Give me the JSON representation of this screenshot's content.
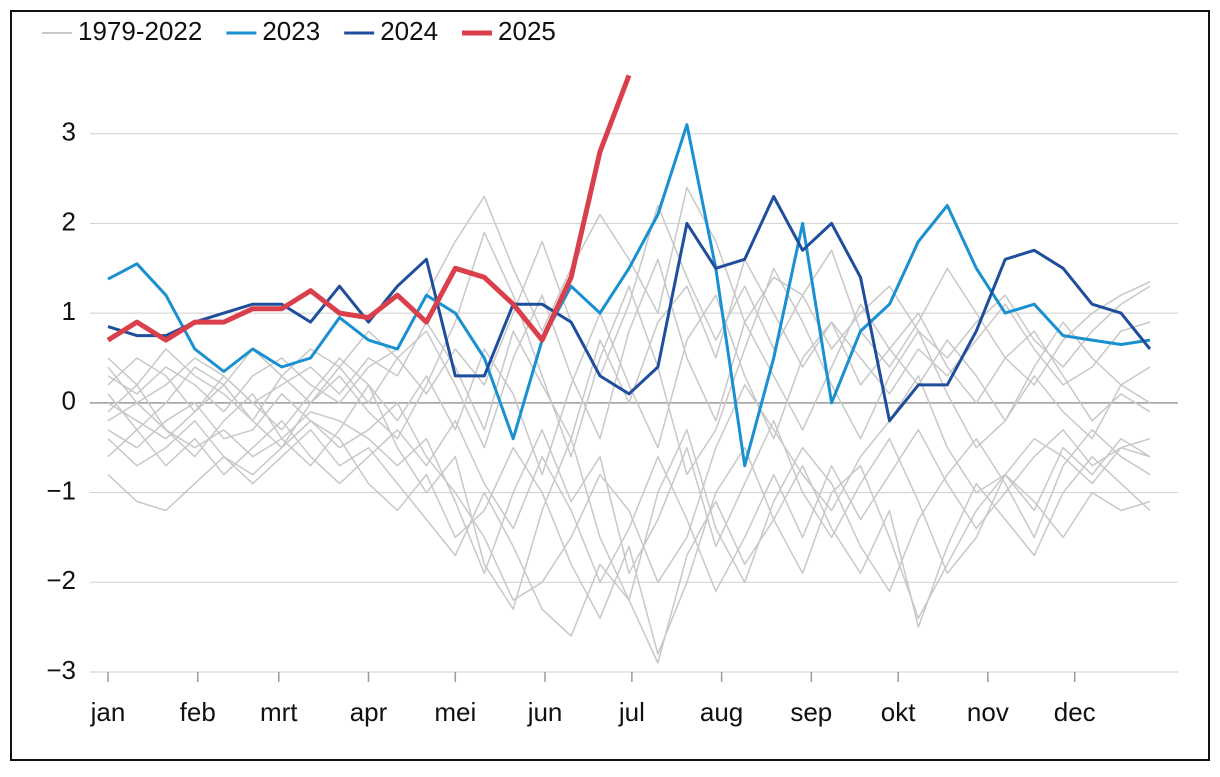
{
  "chart_data": {
    "type": "line",
    "x": [
      1,
      11,
      21,
      31,
      41,
      51,
      61,
      71,
      81,
      91,
      101,
      111,
      121,
      131,
      141,
      151,
      161,
      171,
      181,
      191,
      201,
      211,
      221,
      231,
      241,
      251,
      261,
      271,
      281,
      291,
      301,
      311,
      321,
      331,
      341,
      351,
      361
    ],
    "xlim": [
      1,
      370
    ],
    "xticks": [
      {
        "value": 1,
        "label": "jan"
      },
      {
        "value": 32,
        "label": "feb"
      },
      {
        "value": 60,
        "label": "mrt"
      },
      {
        "value": 91,
        "label": "apr"
      },
      {
        "value": 121,
        "label": "mei"
      },
      {
        "value": 152,
        "label": "jun"
      },
      {
        "value": 182,
        "label": "jul"
      },
      {
        "value": 213,
        "label": "aug"
      },
      {
        "value": 244,
        "label": "sep"
      },
      {
        "value": 274,
        "label": "okt"
      },
      {
        "value": 305,
        "label": "nov"
      },
      {
        "value": 335,
        "label": "dec"
      }
    ],
    "ylim": [
      -3,
      4
    ],
    "yticks": [
      {
        "value": -3,
        "label": "−3"
      },
      {
        "value": -2,
        "label": "−2"
      },
      {
        "value": -1,
        "label": "−1"
      },
      0,
      1,
      2,
      3
    ],
    "grid": true,
    "series": [
      {
        "name": "1979-2022",
        "color": "#c8c8c8",
        "lines": [
          [
            -0.3,
            -0.5,
            -0.2,
            0,
            -0.4,
            -0.3,
            0.1,
            -0.2,
            -0.5,
            -0.3,
            0,
            -0.6,
            -1.0,
            -1.5,
            -2.2,
            -2.0,
            -1.5,
            -0.8,
            -1.2,
            -2.0,
            -1.5,
            -0.5,
            0.2,
            -0.3,
            -0.8,
            -1.2,
            -0.6,
            -0.2,
            0.3,
            -0.5,
            -1.0,
            -0.8,
            -0.4,
            -0.6,
            -0.9,
            -0.5,
            -0.6
          ],
          [
            0.3,
            0.1,
            0.4,
            0.2,
            -0.1,
            0.3,
            0.5,
            0.2,
            0,
            0.4,
            0.6,
            1.2,
            1.8,
            2.3,
            1.5,
            0.8,
            1.5,
            2.1,
            1.6,
            1.0,
            2.4,
            1.8,
            0.9,
            1.4,
            1.2,
            0.6,
            1.0,
            1.3,
            0.8,
            0.5,
            0.9,
            1.2,
            0.7,
            0.4,
            0.8,
            1.1,
            1.3
          ],
          [
            -0.8,
            -1.1,
            -1.2,
            -0.9,
            -0.6,
            -0.8,
            -0.5,
            -0.2,
            -0.4,
            -0.9,
            -1.2,
            -0.8,
            -1.5,
            -1.2,
            -0.5,
            -1.0,
            -1.8,
            -2.4,
            -1.6,
            -2.8,
            -2.0,
            -1.0,
            -0.5,
            -1.3,
            -1.9,
            -1.0,
            -0.7,
            -1.5,
            -2.4,
            -1.8,
            -1.2,
            -0.8,
            -1.1,
            -1.5,
            -1.0,
            -1.2,
            -1.1
          ],
          [
            0.5,
            0.2,
            0.6,
            0.3,
            0.1,
            -0.2,
            0.3,
            0.6,
            0.4,
            0.0,
            0.5,
            0.8,
            0.2,
            -0.5,
            0.5,
            1.2,
            0.3,
            -0.4,
            0.8,
            1.6,
            0.5,
            -0.2,
            0.9,
            0.3,
            -0.3,
            0.4,
            1.1,
            0.6,
            0.2,
            0.7,
            0.3,
            -0.2,
            0.4,
            0.9,
            0.5,
            0.2,
            0.4
          ],
          [
            -0.1,
            0.2,
            -0.3,
            -0.6,
            -0.2,
            0.1,
            -0.4,
            -0.7,
            -0.3,
            0.2,
            -0.5,
            -1.0,
            -0.6,
            -1.8,
            -2.3,
            -1.2,
            -0.4,
            -1.5,
            -2.2,
            -1.0,
            -0.3,
            -1.4,
            -2.0,
            -1.1,
            -0.5,
            -0.9,
            -1.6,
            -2.1,
            -1.3,
            -0.8,
            -0.4,
            -0.9,
            -1.5,
            -0.7,
            -0.3,
            -0.6,
            -0.8
          ],
          [
            0.1,
            -0.3,
            0.0,
            0.4,
            0.2,
            -0.2,
            -0.5,
            0.0,
            0.3,
            -0.1,
            -0.4,
            0.2,
            0.9,
            1.9,
            1.2,
            0.3,
            -0.6,
            0.5,
            1.3,
            0.4,
            -0.8,
            -0.3,
            0.6,
            1.5,
            0.9,
            0.2,
            -0.4,
            0.3,
            0.8,
            0.1,
            -0.5,
            -0.2,
            0.3,
            -0.1,
            -0.4,
            0.2,
            0.0
          ],
          [
            -0.4,
            -0.7,
            -0.5,
            -0.2,
            -0.6,
            -0.9,
            -0.6,
            -0.3,
            -0.7,
            -0.5,
            -0.9,
            -1.3,
            -1.7,
            -1.0,
            -1.6,
            -2.3,
            -2.6,
            -1.8,
            -2.2,
            -2.9,
            -1.7,
            -1.1,
            -1.8,
            -1.3,
            -0.7,
            -1.4,
            -1.9,
            -1.2,
            -2.5,
            -1.6,
            -0.9,
            -1.3,
            -1.7,
            -1.0,
            -0.6,
            -0.9,
            -1.2
          ],
          [
            0.2,
            0.5,
            0.3,
            -0.1,
            0.2,
            0.6,
            0.3,
            0.0,
            0.4,
            0.8,
            0.5,
            0.1,
            0.6,
            0.2,
            1.0,
            1.8,
            0.9,
            0.3,
            1.1,
            2.2,
            1.4,
            0.7,
            1.3,
            0.6,
            1.2,
            1.7,
            0.8,
            0.4,
            0.9,
            1.5,
            1.0,
            0.5,
            0.2,
            0.7,
            1.0,
            1.2,
            1.35
          ],
          [
            -0.6,
            -0.3,
            -0.7,
            -0.4,
            -0.8,
            -0.5,
            -0.2,
            -0.6,
            -0.9,
            -0.6,
            -0.3,
            -0.7,
            -0.2,
            -0.9,
            -1.4,
            -0.6,
            -1.2,
            -2.0,
            -1.4,
            -0.6,
            -1.3,
            -2.1,
            -1.5,
            -0.8,
            -1.5,
            -0.7,
            -1.3,
            -0.8,
            -0.3,
            -0.9,
            -1.4,
            -1.0,
            -0.6,
            -0.3,
            -0.7,
            -0.5,
            -0.4
          ],
          [
            0.0,
            -0.2,
            -0.4,
            -0.1,
            0.3,
            0.0,
            -0.3,
            0.1,
            0.5,
            0.2,
            -0.2,
            0.3,
            -0.3,
            0.6,
            0.1,
            -0.8,
            0.2,
            1.0,
            0.2,
            -0.5,
            0.7,
            1.2,
            0.3,
            -0.4,
            0.5,
            0.9,
            0.2,
            0.6,
            1.0,
            0.4,
            0.0,
            0.5,
            0.8,
            0.3,
            -0.2,
            0.1,
            -0.1
          ],
          [
            -0.2,
            0.0,
            -0.3,
            -0.5,
            -0.3,
            -0.6,
            -0.4,
            -0.1,
            -0.2,
            -0.4,
            -0.7,
            -0.4,
            -1.1,
            -1.9,
            -1.0,
            -0.3,
            -1.1,
            -0.6,
            -1.9,
            -1.3,
            -0.5,
            -1.6,
            -0.9,
            -0.2,
            -1.0,
            -1.5,
            -0.9,
            -0.4,
            -1.1,
            -1.9,
            -1.5,
            -0.8,
            -1.2,
            -0.5,
            -0.8,
            -0.4,
            -0.6
          ],
          [
            0.4,
            0.0,
            0.2,
            0.5,
            0.3,
            0.0,
            0.2,
            0.4,
            0.1,
            0.5,
            0.3,
            0.9,
            0.4,
            -0.3,
            0.8,
            0.2,
            -0.4,
            0.7,
            0.0,
            0.9,
            1.3,
            0.5,
            1.6,
            1.0,
            0.4,
            0.9,
            0.5,
            0.1,
            0.6,
            0.3,
            0.7,
            1.1,
            0.6,
            0.2,
            0.4,
            0.8,
            0.9
          ]
        ]
      },
      {
        "name": "2023",
        "color": "#1a90d0",
        "values": [
          1.38,
          1.55,
          1.2,
          0.6,
          0.35,
          0.6,
          0.4,
          0.5,
          0.95,
          0.7,
          0.6,
          1.2,
          1.0,
          0.5,
          -0.4,
          0.7,
          1.3,
          1.0,
          1.5,
          2.1,
          3.1,
          1.5,
          -0.7,
          0.5,
          2.0,
          0.0,
          0.8,
          1.1,
          1.8,
          2.2,
          1.5,
          1.0,
          1.1,
          0.75,
          0.7,
          0.65,
          0.7
        ]
      },
      {
        "name": "2024",
        "color": "#1f4e9c",
        "values": [
          0.85,
          0.75,
          0.75,
          0.9,
          1.0,
          1.1,
          1.1,
          0.9,
          1.3,
          0.9,
          1.3,
          1.6,
          0.3,
          0.3,
          1.1,
          1.1,
          0.9,
          0.3,
          0.1,
          0.4,
          2.0,
          1.5,
          1.6,
          2.3,
          1.7,
          2.0,
          1.4,
          -0.2,
          0.2,
          0.2,
          0.8,
          1.6,
          1.7,
          1.5,
          1.1,
          1.0,
          0.6
        ]
      },
      {
        "name": "2025",
        "color": "#d9404b",
        "values": [
          0.7,
          0.9,
          0.7,
          0.9,
          0.9,
          1.05,
          1.05,
          1.25,
          1.0,
          0.95,
          1.2,
          0.9,
          1.5,
          1.4,
          1.1,
          0.7,
          1.4,
          2.8,
          3.65,
          null,
          null,
          null,
          null,
          null,
          null,
          null,
          null,
          null,
          null,
          null,
          null,
          null,
          null,
          null,
          null,
          null,
          null
        ]
      }
    ]
  }
}
